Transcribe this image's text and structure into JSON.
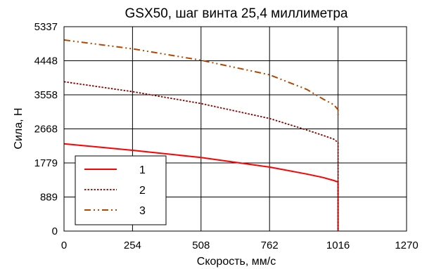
{
  "chart_data": {
    "type": "line",
    "title": "GSX50, шаг винта 25,4 миллиметра",
    "xlabel": "Скорость, мм/с",
    "ylabel": "Сила, Н",
    "xlim": [
      0,
      1270
    ],
    "ylim": [
      0,
      5337
    ],
    "xticks": [
      "0",
      "254",
      "508",
      "762",
      "1016",
      "1270"
    ],
    "xtick_values": [
      0,
      254,
      508,
      762,
      1016,
      1270
    ],
    "yticks": [
      "0",
      "889",
      "1779",
      "2668",
      "3558",
      "4448",
      "5337"
    ],
    "ytick_values": [
      0,
      889,
      1779,
      2668,
      3558,
      4448,
      5337
    ],
    "grid": true,
    "legend_position": "bottom-left",
    "series": [
      {
        "name": "1",
        "color": "#ff0000",
        "style": "solid",
        "points": [
          [
            0,
            2280
          ],
          [
            254,
            2110
          ],
          [
            508,
            1920
          ],
          [
            762,
            1670
          ],
          [
            900,
            1490
          ],
          [
            960,
            1400
          ],
          [
            1000,
            1320
          ],
          [
            1016,
            1280
          ],
          [
            1016,
            0
          ]
        ]
      },
      {
        "name": "2",
        "color": "#8b0000",
        "style": "dotted",
        "points": [
          [
            0,
            3900
          ],
          [
            254,
            3640
          ],
          [
            508,
            3330
          ],
          [
            762,
            2940
          ],
          [
            900,
            2640
          ],
          [
            960,
            2500
          ],
          [
            1000,
            2400
          ],
          [
            1016,
            2310
          ],
          [
            1016,
            0
          ]
        ]
      },
      {
        "name": "3",
        "color": "#b34700",
        "style": "dash-dot-dot",
        "points": [
          [
            0,
            4990
          ],
          [
            254,
            4760
          ],
          [
            508,
            4460
          ],
          [
            762,
            4080
          ],
          [
            900,
            3700
          ],
          [
            960,
            3450
          ],
          [
            1000,
            3300
          ],
          [
            1016,
            3170
          ],
          [
            1016,
            2960
          ]
        ]
      }
    ]
  }
}
